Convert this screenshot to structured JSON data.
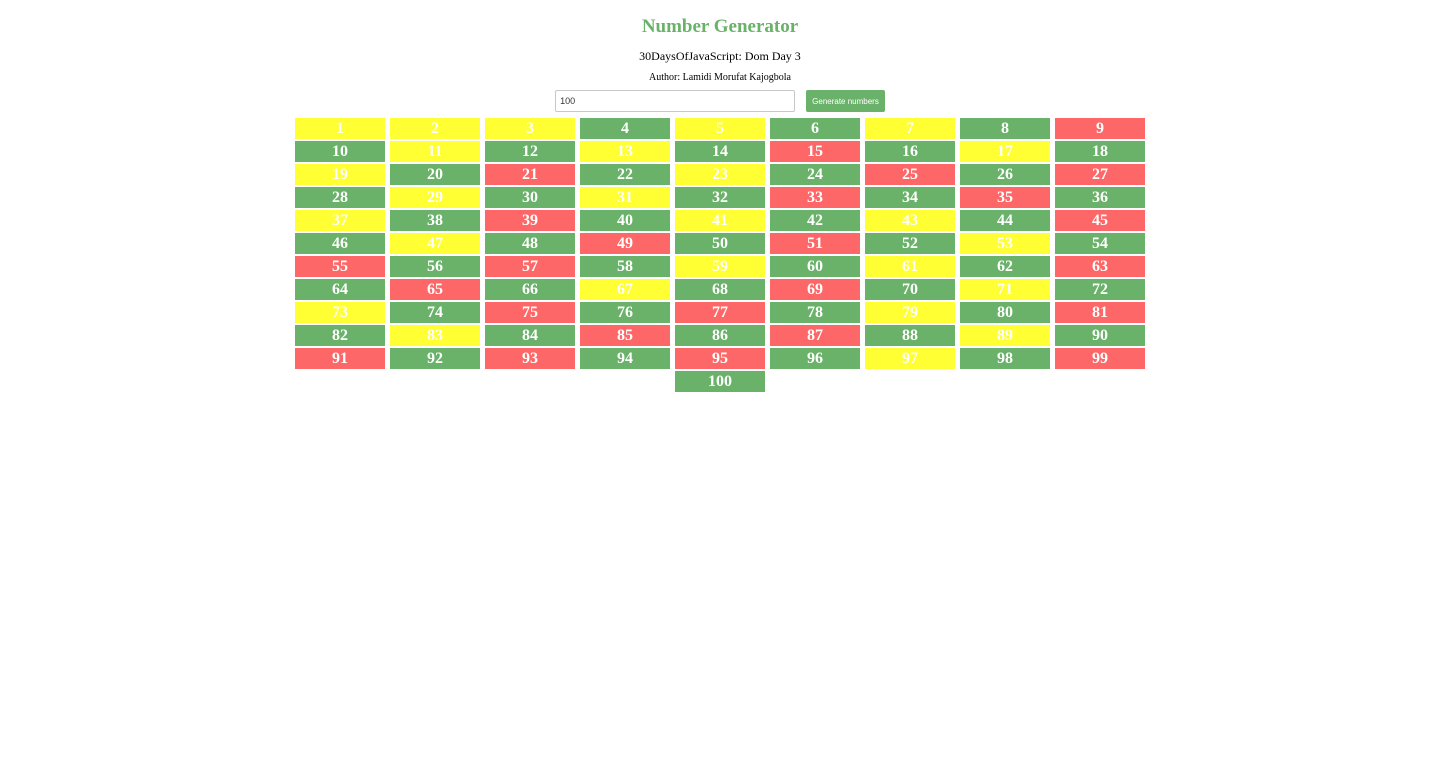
{
  "header": {
    "title": "Number Generator",
    "subtitle": "30DaysOfJavaScript: Dom Day 3",
    "author": "Author: Lamidi Morufat Kajogbola"
  },
  "controls": {
    "input_value": "100",
    "button_label": "Generate numbers"
  },
  "colors": {
    "even": "#6ab269",
    "odd": "#fe6767",
    "prime": "#ffff33",
    "accent": "#6ab269"
  },
  "grid": {
    "count": 100,
    "rule": "prime numbers yellow, even numbers green, odd numbers red"
  }
}
